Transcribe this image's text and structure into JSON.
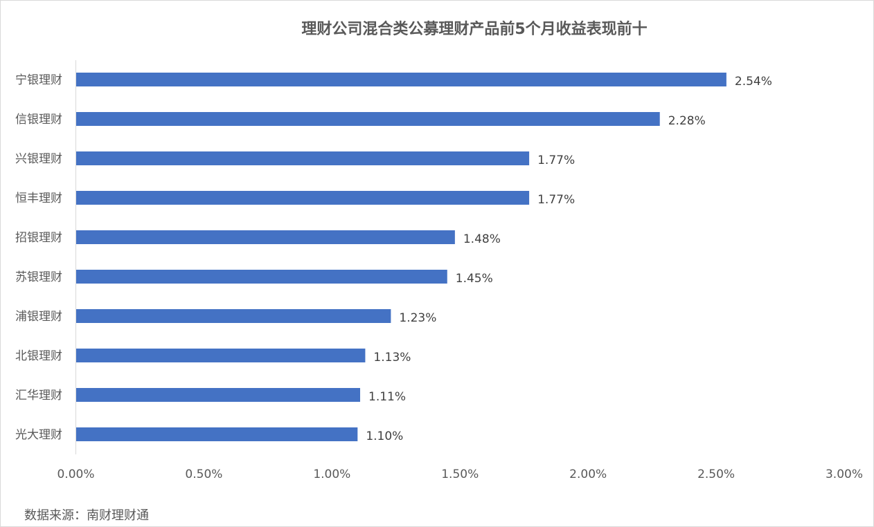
{
  "chart_data": {
    "type": "bar",
    "orientation": "horizontal",
    "title": "理财公司混合类公募理财产品前5个月收益表现前十",
    "xlabel": "",
    "ylabel": "",
    "categories": [
      "宁银理财",
      "信银理财",
      "兴银理财",
      "恒丰理财",
      "招银理财",
      "苏银理财",
      "浦银理财",
      "北银理财",
      "汇华理财",
      "光大理财"
    ],
    "series": [
      {
        "values": [
          2.54,
          2.28,
          1.77,
          1.77,
          1.48,
          1.45,
          1.23,
          1.13,
          1.11,
          1.1
        ],
        "value_labels": [
          "2.54%",
          "2.28%",
          "1.77%",
          "1.77%",
          "1.48%",
          "1.45%",
          "1.23%",
          "1.13%",
          "1.11%",
          "1.10%"
        ],
        "color": "#4472C4"
      }
    ],
    "xlim": [
      0,
      3
    ],
    "x_ticks": [
      0,
      0.5,
      1,
      1.5,
      2,
      2.5,
      3
    ],
    "x_tick_labels": [
      "0.00%",
      "0.50%",
      "1.00%",
      "1.50%",
      "2.00%",
      "2.50%",
      "3.00%"
    ],
    "grid": false,
    "legend": "none",
    "value_unit": "%"
  },
  "source": "数据来源：南财理财通"
}
